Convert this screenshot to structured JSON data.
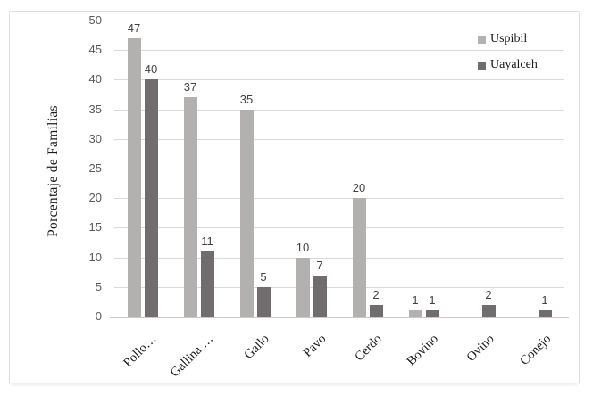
{
  "chart_data": {
    "type": "bar",
    "title": "",
    "ylabel": "Porcentaje de Familias",
    "xlabel": "",
    "ylim": [
      0,
      50
    ],
    "yticks": [
      0,
      5,
      10,
      15,
      20,
      25,
      30,
      35,
      40,
      45,
      50
    ],
    "grid": true,
    "data_labels": true,
    "legend_position": "top-right",
    "categories": [
      "Pollo…",
      "Gallina …",
      "Gallo",
      "Pavo",
      "Cerdo",
      "Bovino",
      "Ovino",
      "Conejo"
    ],
    "series": [
      {
        "name": "Uspibil",
        "color": "#b3b0b0",
        "values": [
          47,
          37,
          35,
          10,
          20,
          1,
          null,
          null
        ]
      },
      {
        "name": "Uayalceh",
        "color": "#716c6e",
        "values": [
          40,
          11,
          5,
          7,
          2,
          1,
          2,
          1
        ]
      }
    ]
  },
  "colors": {
    "gridline": "#d9d9d9",
    "axis_line": "#c9c9c9",
    "tick_label": "#595959",
    "data_label": "#404040",
    "text": "#1a1a1a",
    "border": "#dfdcda",
    "background": "#ffffff"
  }
}
